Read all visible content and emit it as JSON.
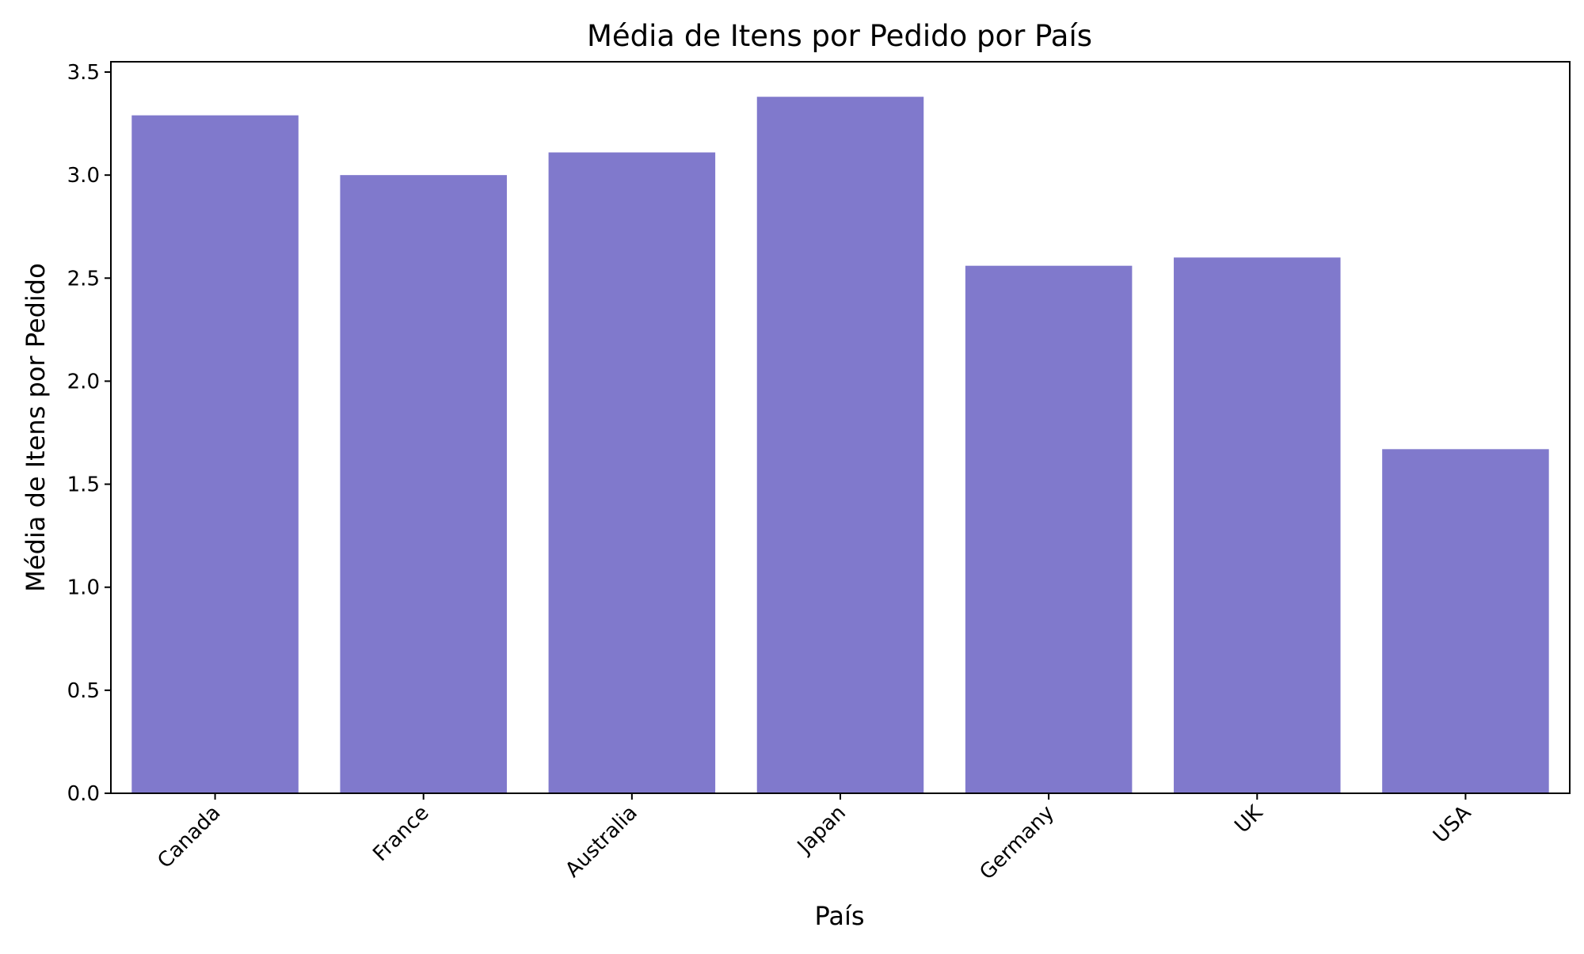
{
  "chart_data": {
    "type": "bar",
    "title": "Média de Itens por Pedido por País",
    "xlabel": "País",
    "ylabel": "Média de Itens por Pedido",
    "categories": [
      "Canada",
      "France",
      "Australia",
      "Japan",
      "Germany",
      "UK",
      "USA"
    ],
    "values": [
      3.29,
      3.0,
      3.11,
      3.38,
      2.56,
      2.6,
      1.67
    ],
    "ylim": [
      0,
      3.55
    ],
    "yticks": [
      0.0,
      0.5,
      1.0,
      1.5,
      2.0,
      2.5,
      3.0,
      3.5
    ],
    "ytick_labels": [
      "0.0",
      "0.5",
      "1.0",
      "1.5",
      "2.0",
      "2.5",
      "3.0",
      "3.5"
    ],
    "grid": false,
    "bar_color": "#8079cc",
    "axis_color": "#000000"
  }
}
